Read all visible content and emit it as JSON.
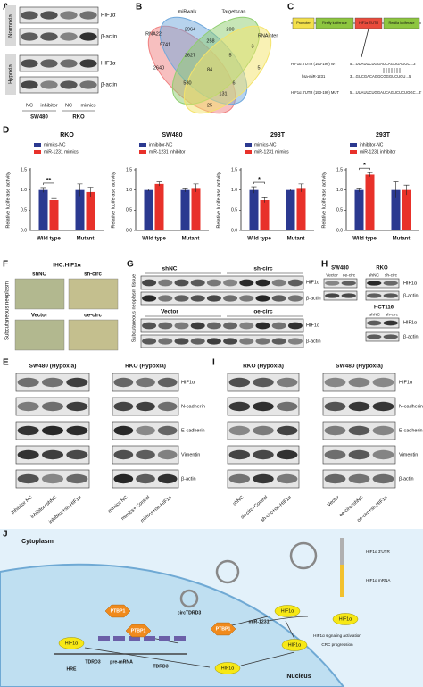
{
  "A": {
    "label": "A",
    "blocks": [
      {
        "condition": "Normoxia",
        "proteins": [
          "HIF1α",
          "β-actin"
        ]
      },
      {
        "condition": "Hypoxia",
        "proteins": [
          "HIF1α",
          "β-actin"
        ]
      }
    ],
    "lanes": [
      "NC",
      "inhibitor",
      "NC",
      "mimics"
    ],
    "cells": [
      "SW480",
      "RKO"
    ]
  },
  "B": {
    "label": "B",
    "sets": [
      "RNA22",
      "miRwalk",
      "Targetscan",
      "RNAinter"
    ],
    "counts": [
      2964,
      258,
      200,
      9741,
      2627,
      5,
      3,
      84,
      2640,
      530,
      6,
      5,
      131,
      25
    ]
  },
  "C": {
    "label": "C",
    "construct": [
      "Promoter",
      "Firefly luciferase",
      "HIF1α 3'UTR",
      "Renilla luciferase"
    ],
    "wt_label": "HIF1α 3'UTR (193-199) WT",
    "wt_seq": "5'...UUAUUCUGGAUCAGUGAGGC...3'",
    "mirna_label": "hsa-miR-1231",
    "mirna_seq": "3'...GUCGACAGGCGGGUCUGU...5'",
    "mut_label": "HIF1α 3'UTR (193-199) MUT",
    "mut_seq": "5'...UUAUUCUGGAUCAGUCUCUGGC...3'"
  },
  "D": {
    "label": "D"
  },
  "chart_data": [
    {
      "type": "bar",
      "title": "RKO",
      "categories": [
        "Wild type",
        "Mutant"
      ],
      "ylabel": "Relative luciferase activity",
      "ylim": [
        0,
        1.5
      ],
      "yticks": [
        {
          "value": 0,
          "label": "0.0"
        },
        0.5,
        {
          "value": 1,
          "label": "1.0"
        },
        1.5
      ],
      "annotations": [
        "**"
      ],
      "series": [
        {
          "name": "mimics-NC",
          "color": "#2b3990",
          "values": [
            1.0,
            1.0
          ],
          "errors": [
            0.06,
            0.15
          ]
        },
        {
          "name": "miR-1231 mimics",
          "color": "#e8312a",
          "values": [
            0.75,
            0.95
          ],
          "errors": [
            0.04,
            0.12
          ]
        }
      ]
    },
    {
      "type": "bar",
      "title": "SW480",
      "categories": [
        "Wild type",
        "Mutant"
      ],
      "ylabel": "Relative luciferase activity",
      "ylim": [
        0,
        1.5
      ],
      "yticks": [
        {
          "value": 0,
          "label": "0.0"
        },
        0.5,
        {
          "value": 1,
          "label": "1.0"
        },
        1.5
      ],
      "annotations": [],
      "series": [
        {
          "name": "inhibitor-NC",
          "color": "#2b3990",
          "values": [
            1.0,
            1.0
          ],
          "errors": [
            0.03,
            0.05
          ]
        },
        {
          "name": "miR-1231 inhibitor",
          "color": "#e8312a",
          "values": [
            1.15,
            1.05
          ],
          "errors": [
            0.05,
            0.1
          ]
        }
      ]
    },
    {
      "type": "bar",
      "title": "293T",
      "categories": [
        "Wild type",
        "Mutant"
      ],
      "ylabel": "Relative luciferase activity",
      "ylim": [
        0,
        1.5
      ],
      "yticks": [
        {
          "value": 0,
          "label": "0.0"
        },
        0.5,
        {
          "value": 1,
          "label": "1.0"
        },
        1.5
      ],
      "annotations": [
        "*"
      ],
      "series": [
        {
          "name": "mimics-NC",
          "color": "#2b3990",
          "values": [
            1.0,
            1.0
          ],
          "errors": [
            0.08,
            0.03
          ]
        },
        {
          "name": "miR-1231 mimics",
          "color": "#e8312a",
          "values": [
            0.75,
            1.05
          ],
          "errors": [
            0.06,
            0.1
          ]
        }
      ]
    },
    {
      "type": "bar",
      "title": "293T",
      "categories": [
        "Wild type",
        "Mutant"
      ],
      "ylabel": "Relative luciferase activity",
      "ylim": [
        0,
        1.5
      ],
      "yticks": [
        {
          "value": 0,
          "label": "0.0"
        },
        0.5,
        {
          "value": 1,
          "label": "1.0"
        },
        1.5
      ],
      "annotations": [
        "*"
      ],
      "series": [
        {
          "name": "inhibitor-NC",
          "color": "#2b3990",
          "values": [
            1.0,
            1.0
          ],
          "errors": [
            0.05,
            0.2
          ]
        },
        {
          "name": "miR-1231 inhibitor",
          "color": "#e8312a",
          "values": [
            1.38,
            1.0
          ],
          "errors": [
            0.05,
            0.12
          ]
        }
      ]
    }
  ],
  "F": {
    "label": "F",
    "title": "IHC:HIF1α",
    "side_label": "Subcutaneous neoplasm",
    "images": [
      "shNC",
      "sh-circ",
      "Vector",
      "oe-circ"
    ]
  },
  "G": {
    "label": "G",
    "side_label": "Subcutaneous neoplasm tissue",
    "blocks": [
      {
        "groups": [
          "shNC",
          "sh-circ"
        ],
        "proteins": [
          "HIF1α",
          "β-actin"
        ]
      },
      {
        "groups": [
          "Vector",
          "oe-circ"
        ],
        "proteins": [
          "HIF1α",
          "β-actin"
        ]
      }
    ]
  },
  "H": {
    "label": "H",
    "top": {
      "cells": [
        "SW480",
        "RKO"
      ],
      "lanes": [
        [
          "Vector",
          "oe-circ"
        ],
        [
          "shNC",
          "sh-circ"
        ]
      ],
      "proteins": [
        "HIF1α",
        "β-actin"
      ]
    },
    "bottom": {
      "cell": "HCT116",
      "lanes": [
        "shNC",
        "sh-circ"
      ],
      "proteins": [
        "HIF1α",
        "β-actin"
      ]
    }
  },
  "E": {
    "label": "E",
    "proteins": [
      "HIF1α",
      "N-cadherin",
      "E-cadherin",
      "Vimentin",
      "β-actin"
    ],
    "groups": [
      {
        "title": "SW480 (Hypoxia)",
        "lanes": [
          "inhibitor NC",
          "inhibitor+shNC",
          "inhibitor+sh-HIF1α"
        ]
      },
      {
        "title": "RKO (Hypoxia)",
        "lanes": [
          "mimics NC",
          "mimics+ Control",
          "mimics+oe-HIF1α"
        ]
      }
    ]
  },
  "I": {
    "label": "I",
    "proteins": [
      "HIF1α",
      "N-cadherin",
      "E-cadherin",
      "Vimentin",
      "β-actin"
    ],
    "groups": [
      {
        "title": "RKO (Hypoxia)",
        "lanes": [
          "shNC",
          "sh-circ+Control",
          "sh-circ+oe-HIF1α"
        ]
      },
      {
        "title": "SW480 (Hypoxia)",
        "lanes": [
          "Vector",
          "oe-circ+shNC",
          "oe-circ+sh-HIF1α"
        ]
      }
    ]
  },
  "J": {
    "label": "J",
    "compartments": [
      "Cytoplasm",
      "Nucleus"
    ],
    "labels": [
      "PTBP1",
      "PTBP1",
      "PTBP1",
      "circTDRD3",
      "miR-1231",
      "HIF1α 3'UTR",
      "HIF1α mRNA",
      "HIF1α",
      "HIF1α",
      "HIF1α",
      "HIF1α",
      "HIF1α",
      "HIF1α signaling activiation",
      "CRC progression",
      "TDRD3",
      "pre-mRNA",
      "TDRD3",
      "HRE"
    ]
  }
}
